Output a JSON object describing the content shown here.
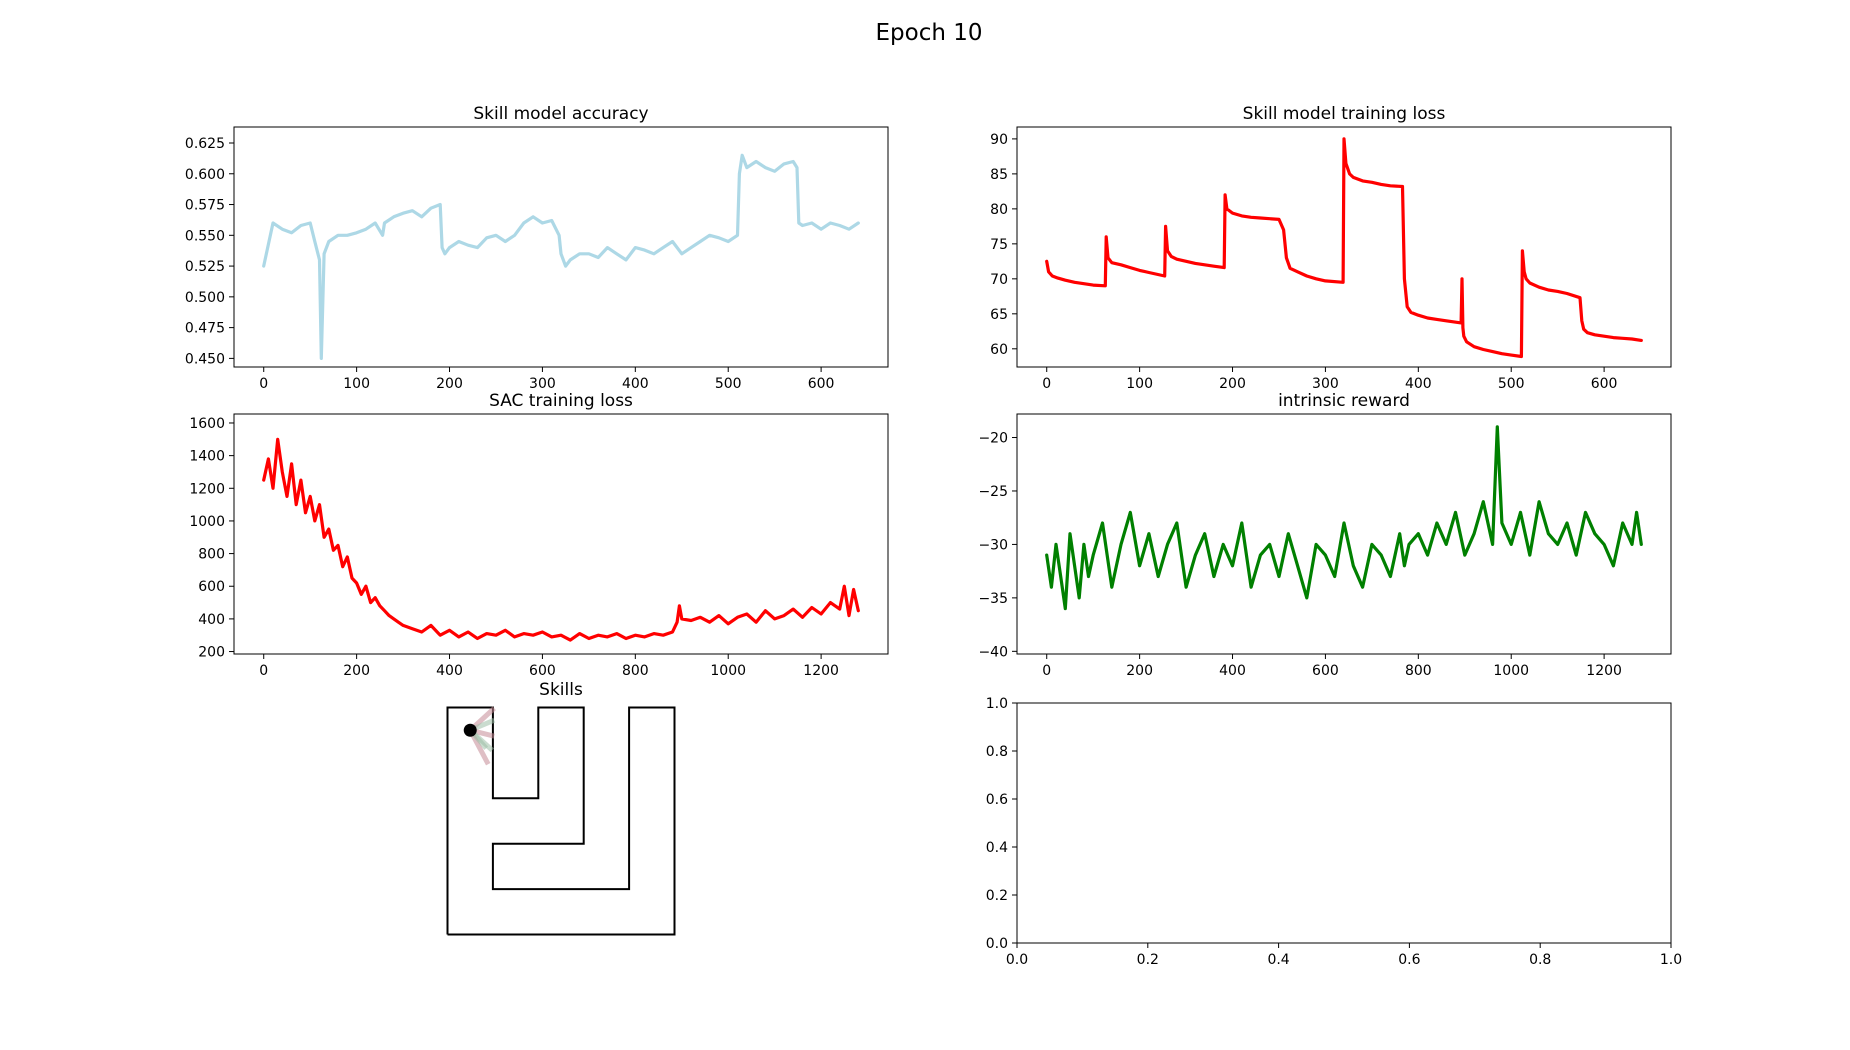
{
  "figure": {
    "suptitle": "Epoch 10"
  },
  "chart_data": [
    {
      "type": "line",
      "title": "Skill model accuracy",
      "xlim": [
        -32,
        672
      ],
      "ylim": [
        0.443,
        0.638
      ],
      "xticks": [
        0,
        100,
        200,
        300,
        400,
        500,
        600
      ],
      "yticks": [
        0.45,
        0.475,
        0.5,
        0.525,
        0.55,
        0.575,
        0.6,
        0.625
      ],
      "xtick_labels": [
        "0",
        "100",
        "200",
        "300",
        "400",
        "500",
        "600"
      ],
      "ytick_labels": [
        "0.450",
        "0.475",
        "0.500",
        "0.525",
        "0.550",
        "0.575",
        "0.600",
        "0.625"
      ],
      "series": [
        {
          "color": "#add8e6",
          "x": [
            0,
            10,
            20,
            30,
            40,
            50,
            55,
            60,
            62,
            65,
            70,
            80,
            90,
            100,
            110,
            120,
            128,
            130,
            140,
            150,
            160,
            170,
            180,
            190,
            192,
            195,
            200,
            210,
            220,
            230,
            240,
            250,
            260,
            270,
            280,
            290,
            300,
            310,
            318,
            320,
            325,
            330,
            340,
            350,
            360,
            370,
            380,
            390,
            400,
            410,
            420,
            430,
            440,
            450,
            460,
            470,
            480,
            490,
            500,
            510,
            512,
            515,
            520,
            530,
            540,
            550,
            560,
            570,
            574,
            576,
            580,
            590,
            600,
            610,
            620,
            630,
            640
          ],
          "y": [
            0.525,
            0.56,
            0.555,
            0.552,
            0.558,
            0.56,
            0.545,
            0.53,
            0.45,
            0.535,
            0.545,
            0.55,
            0.55,
            0.552,
            0.555,
            0.56,
            0.55,
            0.56,
            0.565,
            0.568,
            0.57,
            0.565,
            0.572,
            0.575,
            0.54,
            0.535,
            0.54,
            0.545,
            0.542,
            0.54,
            0.548,
            0.55,
            0.545,
            0.55,
            0.56,
            0.565,
            0.56,
            0.562,
            0.55,
            0.535,
            0.525,
            0.53,
            0.535,
            0.535,
            0.532,
            0.54,
            0.535,
            0.53,
            0.54,
            0.538,
            0.535,
            0.54,
            0.545,
            0.535,
            0.54,
            0.545,
            0.55,
            0.548,
            0.545,
            0.55,
            0.6,
            0.615,
            0.605,
            0.61,
            0.605,
            0.602,
            0.608,
            0.61,
            0.605,
            0.56,
            0.558,
            0.56,
            0.555,
            0.56,
            0.558,
            0.555,
            0.56
          ]
        }
      ]
    },
    {
      "type": "line",
      "title": "Skill model training loss",
      "xlim": [
        -32,
        672
      ],
      "ylim": [
        57.4,
        91.7
      ],
      "xticks": [
        0,
        100,
        200,
        300,
        400,
        500,
        600
      ],
      "yticks": [
        60,
        65,
        70,
        75,
        80,
        85,
        90
      ],
      "xtick_labels": [
        "0",
        "100",
        "200",
        "300",
        "400",
        "500",
        "600"
      ],
      "ytick_labels": [
        "60",
        "65",
        "70",
        "75",
        "80",
        "85",
        "90"
      ],
      "series": [
        {
          "color": "#ff0000",
          "x": [
            0,
            2,
            6,
            12,
            20,
            30,
            40,
            50,
            63,
            64,
            66,
            70,
            80,
            90,
            100,
            110,
            127,
            128,
            130,
            134,
            140,
            150,
            160,
            170,
            180,
            191,
            192,
            194,
            200,
            210,
            220,
            230,
            240,
            250,
            255,
            258,
            262,
            270,
            280,
            290,
            300,
            319,
            320,
            322,
            326,
            330,
            340,
            350,
            360,
            370,
            383,
            385,
            388,
            392,
            400,
            410,
            420,
            430,
            446,
            447,
            448,
            449,
            452,
            460,
            470,
            480,
            490,
            500,
            511,
            512,
            514,
            516,
            520,
            530,
            540,
            550,
            560,
            574,
            576,
            578,
            582,
            590,
            600,
            610,
            620,
            630,
            640
          ],
          "y": [
            72.5,
            71.0,
            70.4,
            70.1,
            69.8,
            69.5,
            69.3,
            69.1,
            69.0,
            76.0,
            73.0,
            72.3,
            72.0,
            71.6,
            71.2,
            70.9,
            70.4,
            77.5,
            74.0,
            73.2,
            72.8,
            72.5,
            72.2,
            72.0,
            71.8,
            71.6,
            82.0,
            80.0,
            79.4,
            79.0,
            78.8,
            78.7,
            78.6,
            78.5,
            77.0,
            73.0,
            71.5,
            71.0,
            70.4,
            70.0,
            69.7,
            69.5,
            90.0,
            86.5,
            85.0,
            84.5,
            84.0,
            83.8,
            83.5,
            83.3,
            83.2,
            70.0,
            66.0,
            65.2,
            64.8,
            64.4,
            64.2,
            64.0,
            63.7,
            70.0,
            63.0,
            61.8,
            61.0,
            60.3,
            59.9,
            59.6,
            59.3,
            59.1,
            58.9,
            74.0,
            71.0,
            70.0,
            69.4,
            68.8,
            68.4,
            68.2,
            67.9,
            67.3,
            64.0,
            62.8,
            62.3,
            62.0,
            61.8,
            61.6,
            61.5,
            61.4,
            61.2
          ]
        }
      ]
    },
    {
      "type": "line",
      "title": "SAC training loss",
      "xlim": [
        -64,
        1344
      ],
      "ylim": [
        185,
        1655
      ],
      "xticks": [
        0,
        200,
        400,
        600,
        800,
        1000,
        1200
      ],
      "yticks": [
        200,
        400,
        600,
        800,
        1000,
        1200,
        1400,
        1600
      ],
      "xtick_labels": [
        "0",
        "200",
        "400",
        "600",
        "800",
        "1000",
        "1200"
      ],
      "ytick_labels": [
        "200",
        "400",
        "600",
        "800",
        "1000",
        "1200",
        "1400",
        "1600"
      ],
      "series": [
        {
          "color": "#ff0000",
          "x": [
            0,
            10,
            20,
            30,
            40,
            50,
            60,
            70,
            80,
            90,
            100,
            110,
            120,
            130,
            140,
            150,
            160,
            170,
            180,
            190,
            200,
            210,
            220,
            230,
            240,
            250,
            260,
            270,
            280,
            290,
            300,
            320,
            340,
            360,
            380,
            400,
            420,
            440,
            460,
            480,
            500,
            520,
            540,
            560,
            580,
            600,
            620,
            640,
            660,
            680,
            700,
            720,
            740,
            760,
            780,
            800,
            820,
            840,
            860,
            880,
            890,
            895,
            900,
            920,
            940,
            960,
            980,
            1000,
            1020,
            1040,
            1060,
            1080,
            1100,
            1120,
            1140,
            1160,
            1180,
            1200,
            1220,
            1240,
            1250,
            1260,
            1270,
            1280
          ],
          "y": [
            1250,
            1380,
            1200,
            1500,
            1300,
            1150,
            1350,
            1100,
            1250,
            1050,
            1150,
            1000,
            1100,
            900,
            950,
            820,
            850,
            720,
            780,
            650,
            620,
            550,
            600,
            500,
            530,
            480,
            450,
            420,
            400,
            380,
            360,
            340,
            320,
            360,
            300,
            330,
            290,
            320,
            280,
            310,
            300,
            330,
            290,
            310,
            300,
            320,
            290,
            300,
            270,
            310,
            280,
            300,
            290,
            310,
            280,
            300,
            290,
            310,
            300,
            320,
            380,
            480,
            400,
            390,
            410,
            380,
            420,
            370,
            410,
            430,
            380,
            450,
            400,
            420,
            460,
            410,
            470,
            430,
            500,
            460,
            600,
            420,
            580,
            450
          ]
        }
      ]
    },
    {
      "type": "line",
      "title": "intrinsic reward",
      "xlim": [
        -64,
        1344
      ],
      "ylim": [
        -40.25,
        -17.8
      ],
      "xticks": [
        0,
        200,
        400,
        600,
        800,
        1000,
        1200
      ],
      "yticks": [
        -40,
        -35,
        -30,
        -25,
        -20
      ],
      "xtick_labels": [
        "0",
        "200",
        "400",
        "600",
        "800",
        "1000",
        "1200"
      ],
      "ytick_labels": [
        "−40",
        "−35",
        "−30",
        "−25",
        "−20"
      ],
      "series": [
        {
          "color": "#008000",
          "x": [
            0,
            10,
            20,
            30,
            40,
            50,
            60,
            70,
            80,
            90,
            100,
            120,
            140,
            160,
            180,
            200,
            220,
            240,
            260,
            280,
            300,
            320,
            340,
            360,
            380,
            400,
            420,
            440,
            460,
            480,
            500,
            520,
            540,
            560,
            580,
            600,
            620,
            640,
            660,
            680,
            700,
            720,
            740,
            760,
            770,
            780,
            800,
            820,
            840,
            860,
            880,
            900,
            920,
            940,
            960,
            970,
            980,
            1000,
            1020,
            1040,
            1060,
            1080,
            1100,
            1120,
            1140,
            1160,
            1180,
            1200,
            1220,
            1240,
            1260,
            1270,
            1280
          ],
          "y": [
            -31,
            -34,
            -30,
            -33,
            -36,
            -29,
            -32,
            -35,
            -30,
            -33,
            -31,
            -28,
            -34,
            -30,
            -27,
            -32,
            -29,
            -33,
            -30,
            -28,
            -34,
            -31,
            -29,
            -33,
            -30,
            -32,
            -28,
            -34,
            -31,
            -30,
            -33,
            -29,
            -32,
            -35,
            -30,
            -31,
            -33,
            -28,
            -32,
            -34,
            -30,
            -31,
            -33,
            -29,
            -32,
            -30,
            -29,
            -31,
            -28,
            -30,
            -27,
            -31,
            -29,
            -26,
            -30,
            -19,
            -28,
            -30,
            -27,
            -31,
            -26,
            -29,
            -30,
            -28,
            -31,
            -27,
            -29,
            -30,
            -32,
            -28,
            -30,
            -27,
            -30
          ]
        }
      ]
    },
    {
      "type": "maze",
      "title": "Skills",
      "xlim": [
        -0.1,
        5.1
      ],
      "ylim": [
        -0.1,
        5.1
      ],
      "walls": [
        [
          [
            0,
            0
          ],
          [
            5,
            0
          ],
          [
            5,
            5
          ],
          [
            4,
            5
          ],
          [
            4,
            1
          ],
          [
            1,
            1
          ],
          [
            1,
            2
          ],
          [
            3,
            2
          ],
          [
            3,
            5
          ],
          [
            2,
            5
          ],
          [
            2,
            3
          ],
          [
            1,
            3
          ],
          [
            1,
            5
          ],
          [
            0,
            5
          ],
          [
            0,
            0
          ]
        ]
      ],
      "agent": {
        "x": 0.5,
        "y": 4.5,
        "color": "#000000"
      },
      "skill_fan_color": "#c48a95"
    },
    {
      "type": "line",
      "title": "",
      "xlim": [
        0,
        1
      ],
      "ylim": [
        0,
        1
      ],
      "xticks": [
        0,
        0.2,
        0.4,
        0.6,
        0.8,
        1.0
      ],
      "yticks": [
        0,
        0.2,
        0.4,
        0.6,
        0.8,
        1.0
      ],
      "xtick_labels": [
        "0.0",
        "0.2",
        "0.4",
        "0.6",
        "0.8",
        "1.0"
      ],
      "ytick_labels": [
        "0.0",
        "0.2",
        "0.4",
        "0.6",
        "0.8",
        "1.0"
      ],
      "series": []
    }
  ]
}
